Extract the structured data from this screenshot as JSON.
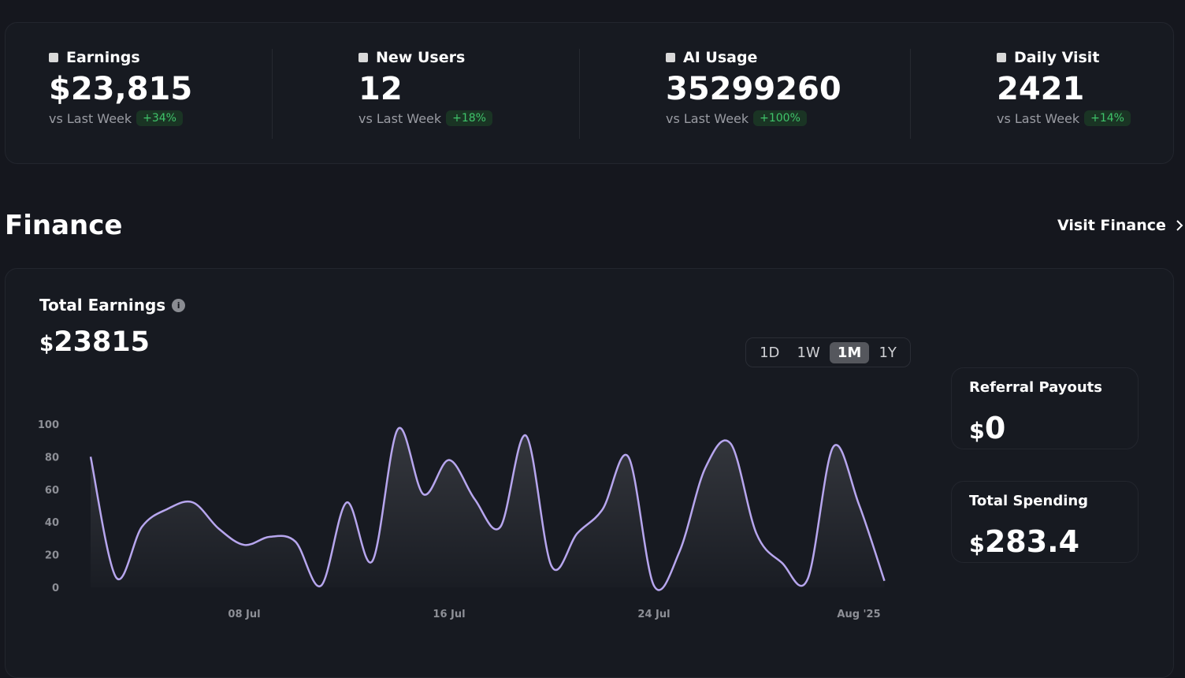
{
  "stats": [
    {
      "label": "Earnings",
      "value": "$23,815",
      "compare": "vs Last Week",
      "change": "+34%"
    },
    {
      "label": "New Users",
      "value": "12",
      "compare": "vs Last Week",
      "change": "+18%"
    },
    {
      "label": "AI Usage",
      "value": "35299260",
      "compare": "vs Last Week",
      "change": "+100%"
    },
    {
      "label": "Daily Visit",
      "value": "2421",
      "compare": "vs Last Week",
      "change": "+14%"
    }
  ],
  "section": {
    "title": "Finance",
    "link": "Visit Finance"
  },
  "earnings": {
    "title": "Total Earnings",
    "currency": "$",
    "amount": "23815",
    "ranges": [
      "1D",
      "1W",
      "1M",
      "1Y"
    ],
    "active_range": "1M"
  },
  "side_cards": [
    {
      "title": "Referral Payouts",
      "currency": "$",
      "amount": "0"
    },
    {
      "title": "Total Spending",
      "currency": "$",
      "amount": "283.4"
    }
  ],
  "chart_data": {
    "type": "line",
    "categories": [
      null,
      null,
      null,
      null,
      null,
      null,
      "08 Jul",
      null,
      null,
      null,
      null,
      null,
      null,
      null,
      "16 Jul",
      null,
      null,
      null,
      null,
      null,
      null,
      null,
      "24 Jul",
      null,
      null,
      null,
      null,
      null,
      null,
      null,
      "Aug '25",
      null
    ],
    "values": [
      80,
      6,
      37,
      48,
      52,
      36,
      26,
      31,
      28,
      1,
      52,
      16,
      97,
      57,
      78,
      54,
      37,
      93,
      13,
      33,
      48,
      80,
      1,
      22,
      73,
      88,
      33,
      15,
      5,
      86,
      51,
      4
    ],
    "color": "#b7a6ee",
    "ylim": [
      0,
      100
    ],
    "yticks": [
      0,
      20,
      40,
      60,
      80,
      100
    ],
    "grid": false
  }
}
